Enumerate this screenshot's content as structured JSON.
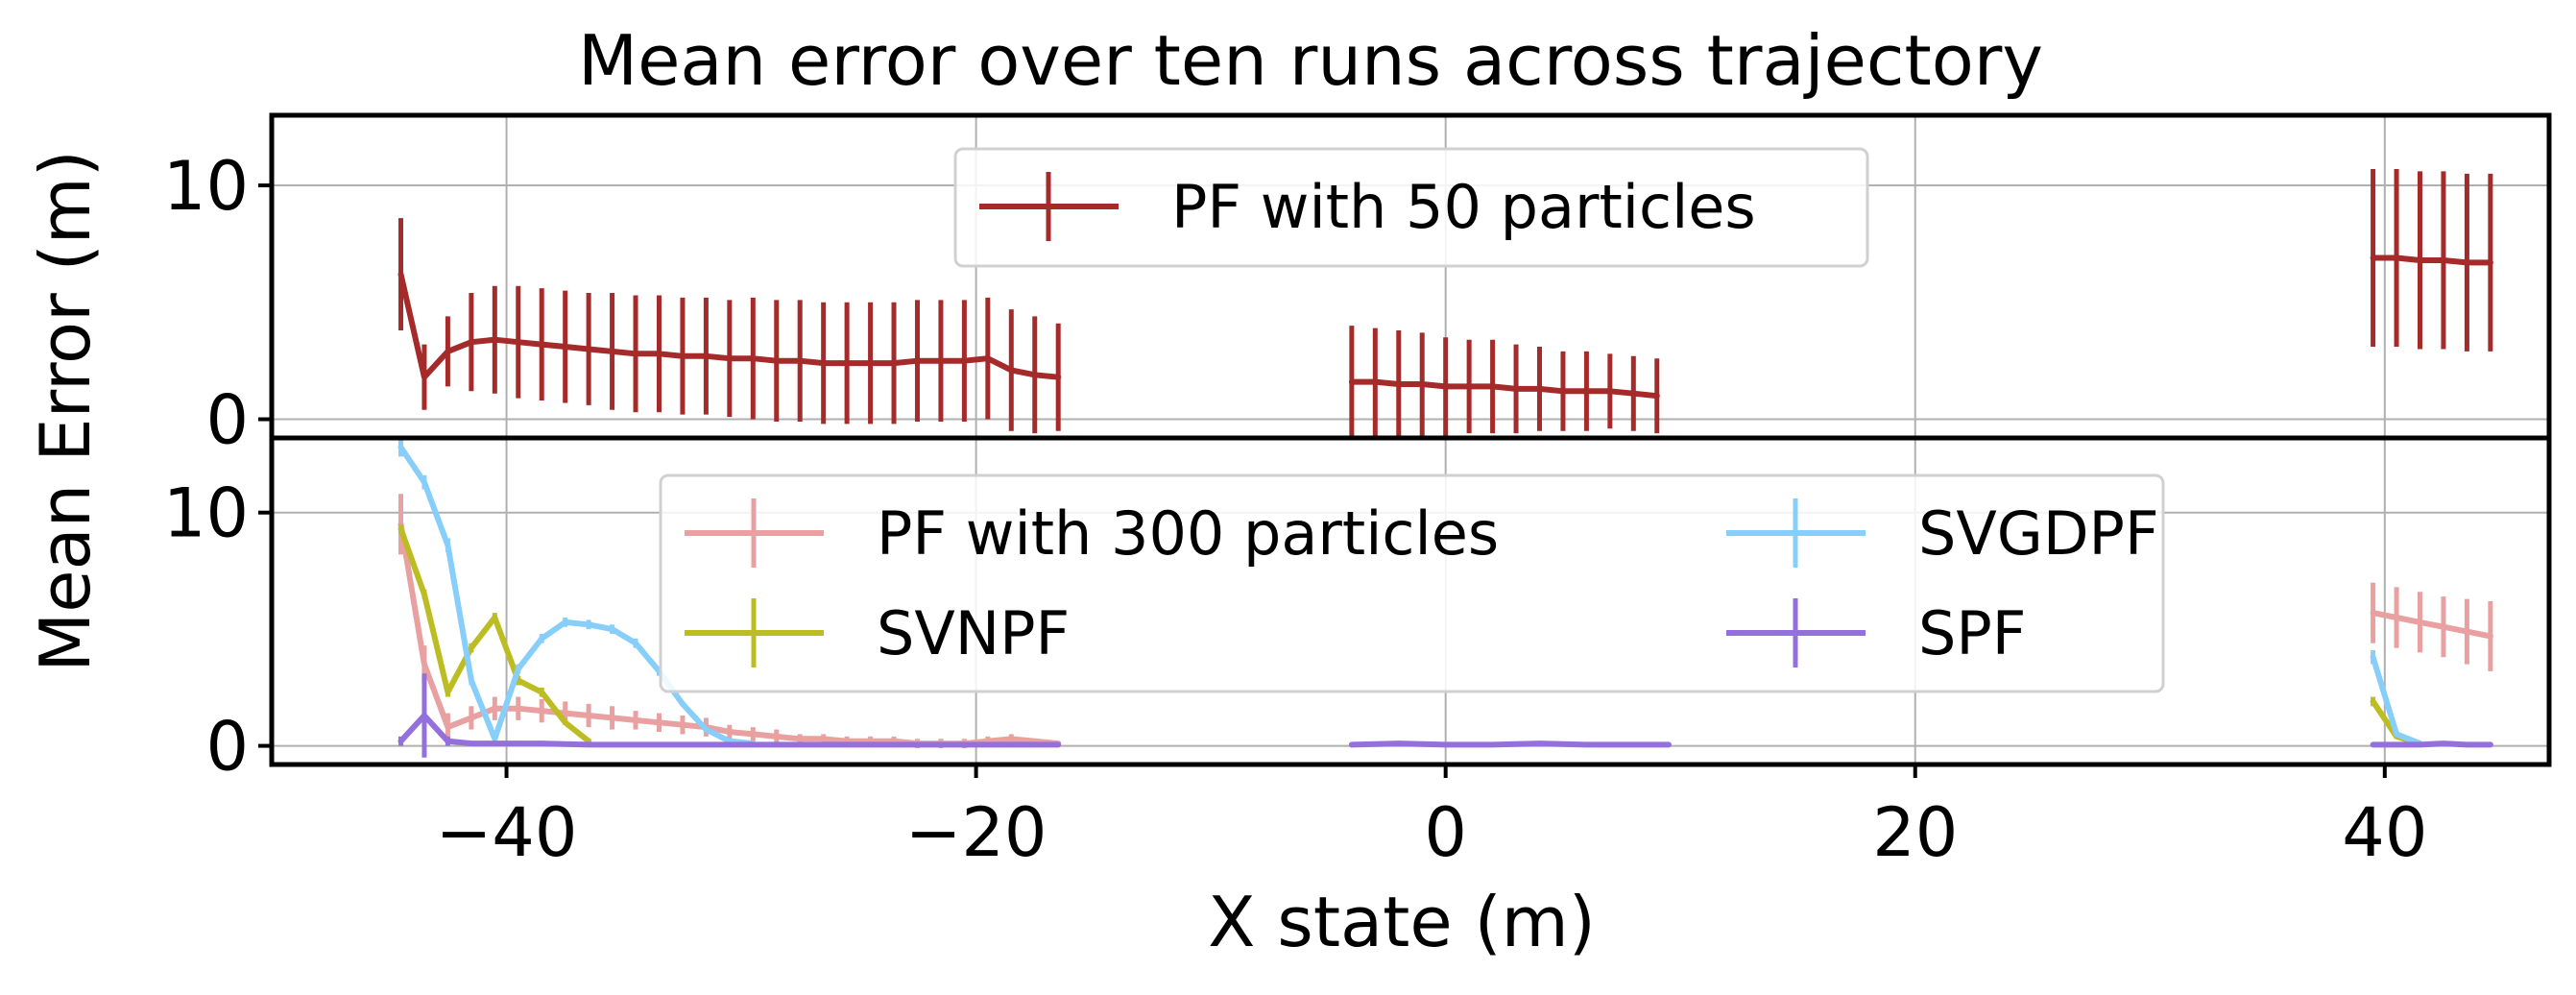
{
  "chart_data": {
    "type": "line",
    "title": "Mean error over ten runs across trajectory",
    "xlabel": "X state (m)",
    "ylabel": "Mean Error (m)",
    "xlim": [
      -50,
      47
    ],
    "xticks": [
      -40,
      -20,
      0,
      20,
      40
    ],
    "xtick_labels": [
      "−40",
      "−20",
      "0",
      "20",
      "40"
    ],
    "grid": true,
    "panels": [
      {
        "name": "top",
        "ylim": [
          -0.8,
          13
        ],
        "yticks": [
          0,
          10
        ],
        "ytick_labels": [
          "0",
          "10"
        ],
        "legend": {
          "placement": "upper-center",
          "columns": 1
        },
        "series": [
          {
            "name": "PF with 50 particles",
            "color": "#a52a2a",
            "segments": [
              [
                [
                  -44.5,
                  6.2,
                  2.4
                ],
                [
                  -43.5,
                  1.8,
                  1.4
                ],
                [
                  -42.5,
                  2.9,
                  1.5
                ],
                [
                  -41.5,
                  3.3,
                  2.1
                ],
                [
                  -40.5,
                  3.4,
                  2.3
                ],
                [
                  -39.5,
                  3.3,
                  2.4
                ],
                [
                  -38.5,
                  3.2,
                  2.4
                ],
                [
                  -37.5,
                  3.1,
                  2.4
                ],
                [
                  -36.5,
                  3.0,
                  2.4
                ],
                [
                  -35.5,
                  2.9,
                  2.5
                ],
                [
                  -34.5,
                  2.8,
                  2.5
                ],
                [
                  -33.5,
                  2.8,
                  2.5
                ],
                [
                  -32.5,
                  2.7,
                  2.5
                ],
                [
                  -31.5,
                  2.7,
                  2.5
                ],
                [
                  -30.5,
                  2.6,
                  2.5
                ],
                [
                  -29.5,
                  2.6,
                  2.6
                ],
                [
                  -28.5,
                  2.5,
                  2.6
                ],
                [
                  -27.5,
                  2.5,
                  2.6
                ],
                [
                  -26.5,
                  2.4,
                  2.6
                ],
                [
                  -25.5,
                  2.4,
                  2.6
                ],
                [
                  -24.5,
                  2.4,
                  2.6
                ],
                [
                  -23.5,
                  2.4,
                  2.6
                ],
                [
                  -22.5,
                  2.5,
                  2.6
                ],
                [
                  -21.5,
                  2.5,
                  2.6
                ],
                [
                  -20.5,
                  2.5,
                  2.6
                ],
                [
                  -19.5,
                  2.6,
                  2.6
                ],
                [
                  -18.5,
                  2.1,
                  2.6
                ],
                [
                  -17.5,
                  1.9,
                  2.5
                ],
                [
                  -16.5,
                  1.8,
                  2.3
                ]
              ],
              [
                [
                  -4,
                  1.6,
                  2.4
                ],
                [
                  -3,
                  1.6,
                  2.3
                ],
                [
                  -2,
                  1.5,
                  2.3
                ],
                [
                  -1,
                  1.5,
                  2.2
                ],
                [
                  0,
                  1.4,
                  2.1
                ],
                [
                  1,
                  1.4,
                  2.0
                ],
                [
                  2,
                  1.4,
                  2.0
                ],
                [
                  3,
                  1.3,
                  1.9
                ],
                [
                  4,
                  1.3,
                  1.8
                ],
                [
                  5,
                  1.2,
                  1.7
                ],
                [
                  6,
                  1.2,
                  1.7
                ],
                [
                  7,
                  1.2,
                  1.6
                ],
                [
                  8,
                  1.1,
                  1.6
                ],
                [
                  9,
                  1.0,
                  1.6
                ]
              ],
              [
                [
                  39.5,
                  6.9,
                  3.8
                ],
                [
                  40.5,
                  6.9,
                  3.8
                ],
                [
                  41.5,
                  6.8,
                  3.8
                ],
                [
                  42.5,
                  6.8,
                  3.8
                ],
                [
                  43.5,
                  6.7,
                  3.8
                ],
                [
                  44.5,
                  6.7,
                  3.8
                ]
              ]
            ]
          }
        ]
      },
      {
        "name": "bottom",
        "ylim": [
          -0.8,
          13.2
        ],
        "yticks": [
          0,
          10
        ],
        "ytick_labels": [
          "0",
          "10"
        ],
        "legend": {
          "placement": "upper-center",
          "columns": 2
        },
        "series": [
          {
            "name": "PF with 300 particles",
            "color": "#e8a0a0",
            "segments": [
              [
                [
                  -44.5,
                  9.5,
                  1.3
                ],
                [
                  -43.5,
                  3.5,
                  0.8
                ],
                [
                  -42.5,
                  0.8,
                  0.6
                ],
                [
                  -41.5,
                  1.2,
                  0.5
                ],
                [
                  -40.5,
                  1.6,
                  0.5
                ],
                [
                  -39.5,
                  1.6,
                  0.5
                ],
                [
                  -38.5,
                  1.5,
                  0.5
                ],
                [
                  -37.5,
                  1.4,
                  0.5
                ],
                [
                  -36.5,
                  1.3,
                  0.5
                ],
                [
                  -35.5,
                  1.2,
                  0.5
                ],
                [
                  -34.5,
                  1.1,
                  0.4
                ],
                [
                  -33.5,
                  1.0,
                  0.4
                ],
                [
                  -32.5,
                  0.9,
                  0.4
                ],
                [
                  -31.5,
                  0.8,
                  0.4
                ],
                [
                  -30.5,
                  0.6,
                  0.3
                ],
                [
                  -29.5,
                  0.5,
                  0.3
                ],
                [
                  -28.5,
                  0.4,
                  0.3
                ],
                [
                  -27.5,
                  0.3,
                  0.2
                ],
                [
                  -26.5,
                  0.3,
                  0.2
                ],
                [
                  -25.5,
                  0.2,
                  0.2
                ],
                [
                  -24.5,
                  0.2,
                  0.2
                ],
                [
                  -23.5,
                  0.2,
                  0.2
                ],
                [
                  -22.5,
                  0.1,
                  0.2
                ],
                [
                  -21.5,
                  0.1,
                  0.2
                ],
                [
                  -20.5,
                  0.1,
                  0.2
                ],
                [
                  -19.5,
                  0.2,
                  0.2
                ],
                [
                  -18.5,
                  0.3,
                  0.2
                ],
                [
                  -17.5,
                  0.2,
                  0.1
                ],
                [
                  -16.5,
                  0.1,
                  0.1
                ]
              ],
              [
                [
                  39.5,
                  5.7,
                  1.3
                ],
                [
                  40.5,
                  5.5,
                  1.3
                ],
                [
                  41.5,
                  5.3,
                  1.3
                ],
                [
                  42.5,
                  5.1,
                  1.3
                ],
                [
                  43.5,
                  4.9,
                  1.4
                ],
                [
                  44.5,
                  4.7,
                  1.5
                ]
              ]
            ]
          },
          {
            "name": "SVNPF",
            "color": "#bcbd22",
            "segments": [
              [
                [
                  -44.5,
                  9.3,
                  0.2
                ],
                [
                  -43.5,
                  6.5,
                  0.2
                ],
                [
                  -42.5,
                  2.3,
                  0.2
                ],
                [
                  -41.5,
                  4.2,
                  0.2
                ],
                [
                  -40.5,
                  5.5,
                  0.2
                ],
                [
                  -39.5,
                  2.8,
                  0.2
                ],
                [
                  -38.5,
                  2.3,
                  0.2
                ],
                [
                  -37.5,
                  1.0,
                  0.1
                ],
                [
                  -36.5,
                  0.2,
                  0.1
                ]
              ],
              [
                [
                  -4,
                  0.05,
                  0.05
                ]
              ],
              [
                [
                  39.5,
                  1.9,
                  0.2
                ],
                [
                  40.5,
                  0.4,
                  0.1
                ],
                [
                  41.5,
                  0.1,
                  0.05
                ]
              ]
            ]
          },
          {
            "name": "SVGDPF",
            "color": "#87cefa",
            "segments": [
              [
                [
                  -44.5,
                  12.8,
                  0.4
                ],
                [
                  -43.5,
                  11.3,
                  0.3
                ],
                [
                  -42.5,
                  8.6,
                  0.3
                ],
                [
                  -41.5,
                  2.8,
                  0.2
                ],
                [
                  -40.5,
                  0.3,
                  0.1
                ],
                [
                  -39.5,
                  3.3,
                  0.2
                ],
                [
                  -38.5,
                  4.6,
                  0.2
                ],
                [
                  -37.5,
                  5.3,
                  0.2
                ],
                [
                  -36.5,
                  5.2,
                  0.2
                ],
                [
                  -35.5,
                  5.0,
                  0.2
                ],
                [
                  -34.5,
                  4.4,
                  0.2
                ],
                [
                  -33.5,
                  3.2,
                  0.2
                ],
                [
                  -32.5,
                  1.8,
                  0.1
                ],
                [
                  -31.5,
                  0.7,
                  0.1
                ],
                [
                  -30.5,
                  0.2,
                  0.1
                ],
                [
                  -29.5,
                  0.1,
                  0.05
                ]
              ],
              [
                [
                  39.5,
                  3.8,
                  0.3
                ],
                [
                  40.5,
                  0.5,
                  0.1
                ],
                [
                  41.5,
                  0.1,
                  0.05
                ]
              ]
            ]
          },
          {
            "name": "SPF",
            "color": "#9370db",
            "segments": [
              [
                [
                  -44.5,
                  0.2,
                  0.2
                ],
                [
                  -43.5,
                  1.3,
                  1.8
                ],
                [
                  -42.5,
                  0.2,
                  0.2
                ],
                [
                  -41.5,
                  0.1,
                  0.1
                ],
                [
                  -40.5,
                  0.1,
                  0.1
                ],
                [
                  -39.5,
                  0.1,
                  0.1
                ],
                [
                  -38.5,
                  0.1,
                  0.1
                ],
                [
                  -36.5,
                  0.05,
                  0.05
                ],
                [
                  -33.5,
                  0.05,
                  0.05
                ],
                [
                  -30.5,
                  0.05,
                  0.05
                ],
                [
                  -27.5,
                  0.05,
                  0.05
                ],
                [
                  -24.5,
                  0.05,
                  0.05
                ],
                [
                  -21.5,
                  0.05,
                  0.05
                ],
                [
                  -18.5,
                  0.05,
                  0.05
                ],
                [
                  -16.5,
                  0.05,
                  0.05
                ]
              ],
              [
                [
                  -4,
                  0.05,
                  0.05
                ],
                [
                  -2,
                  0.1,
                  0.05
                ],
                [
                  0,
                  0.05,
                  0.05
                ],
                [
                  2,
                  0.05,
                  0.05
                ],
                [
                  4,
                  0.1,
                  0.05
                ],
                [
                  6,
                  0.05,
                  0.05
                ],
                [
                  8,
                  0.05,
                  0.05
                ],
                [
                  9.5,
                  0.05,
                  0.05
                ]
              ],
              [
                [
                  39.5,
                  0.05,
                  0.05
                ],
                [
                  41.5,
                  0.05,
                  0.05
                ],
                [
                  42.5,
                  0.1,
                  0.05
                ],
                [
                  43.5,
                  0.05,
                  0.05
                ],
                [
                  44.5,
                  0.05,
                  0.05
                ]
              ]
            ]
          }
        ]
      }
    ]
  }
}
